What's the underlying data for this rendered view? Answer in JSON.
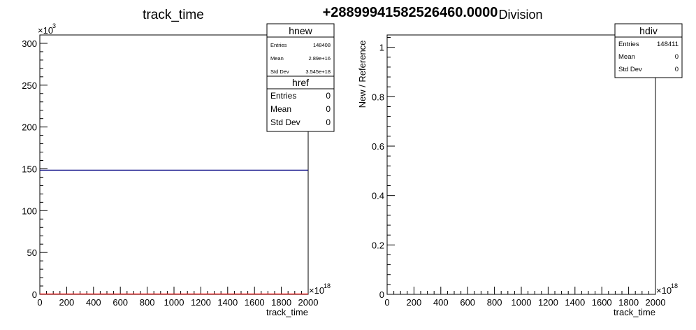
{
  "overlay_text": "+28899941582526460.0000",
  "chart_data": [
    {
      "type": "histogram",
      "title": "track_time",
      "xlabel": "track_time",
      "ylabel": "",
      "x_multiplier": "×10",
      "x_multiplier_exp": "18",
      "y_multiplier": "×10",
      "y_multiplier_exp": "3",
      "xlim": [
        0,
        2000
      ],
      "ylim": [
        0,
        310
      ],
      "x_ticks": [
        "0",
        "200",
        "400",
        "600",
        "800",
        "1000",
        "1200",
        "1400",
        "1600",
        "1800",
        "2000"
      ],
      "y_ticks": [
        "0",
        "50",
        "100",
        "150",
        "200",
        "250",
        "300"
      ],
      "series": [
        {
          "name": "hnew",
          "color": "#000080",
          "type": "flat",
          "value": 148.4,
          "x_range": [
            0,
            2000
          ]
        },
        {
          "name": "href",
          "color": "#ff0000",
          "type": "flat",
          "value": 0,
          "x_range": [
            0,
            2000
          ]
        }
      ],
      "stats": [
        {
          "name": "hnew",
          "rows": [
            [
              "Entries",
              "148408"
            ],
            [
              "Mean",
              "2.89e+16"
            ],
            [
              "Std Dev",
              "3.545e+18"
            ]
          ]
        },
        {
          "name": "href",
          "rows": [
            [
              "Entries",
              "0"
            ],
            [
              "Mean",
              "0"
            ],
            [
              "Std Dev",
              "0"
            ]
          ]
        }
      ]
    },
    {
      "type": "histogram",
      "title": "Division",
      "xlabel": "track_time",
      "ylabel": "New / Reference",
      "x_multiplier": "×10",
      "x_multiplier_exp": "18",
      "xlim": [
        0,
        2000
      ],
      "ylim": [
        0,
        1.05
      ],
      "x_ticks": [
        "0",
        "200",
        "400",
        "600",
        "800",
        "1000",
        "1200",
        "1400",
        "1600",
        "1800",
        "2000"
      ],
      "y_ticks": [
        "0",
        "0.2",
        "0.4",
        "0.6",
        "0.8",
        "1"
      ],
      "series": [],
      "stats": [
        {
          "name": "hdiv",
          "rows": [
            [
              "Entries",
              "148411"
            ],
            [
              "Mean",
              "0"
            ],
            [
              "Std Dev",
              "0"
            ]
          ]
        }
      ]
    }
  ]
}
